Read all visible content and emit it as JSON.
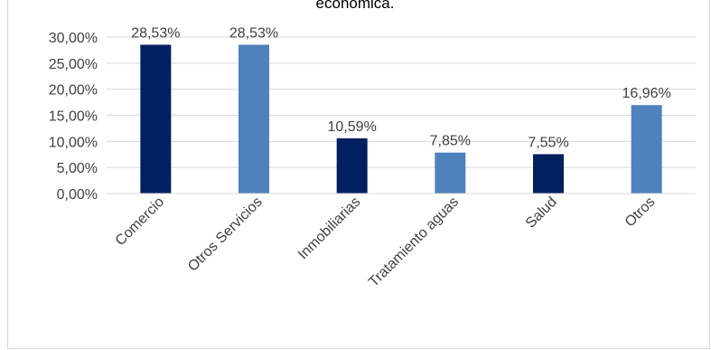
{
  "chart_data": {
    "type": "bar",
    "title": "económica.",
    "categories": [
      "Comercio",
      "Otros Servicios",
      "Inmobiliarias",
      "Tratamiento aguas",
      "Salud",
      "Otros"
    ],
    "values": [
      28.53,
      28.53,
      10.59,
      7.85,
      7.55,
      16.96
    ],
    "data_labels": [
      "28,53%",
      "28,53%",
      "10,59%",
      "7,85%",
      "7,55%",
      "16,96%"
    ],
    "bar_colors": [
      "#002060",
      "#4f81bd",
      "#002060",
      "#4f81bd",
      "#002060",
      "#4f81bd"
    ],
    "ylim": [
      0,
      30
    ],
    "yticks": [
      0,
      5,
      10,
      15,
      20,
      25,
      30
    ],
    "ytick_labels": [
      "0,00%",
      "5,00%",
      "10,00%",
      "15,00%",
      "20,00%",
      "25,00%",
      "30,00%"
    ],
    "xlabel": "",
    "ylabel": "",
    "grid": true,
    "legend": "none"
  }
}
